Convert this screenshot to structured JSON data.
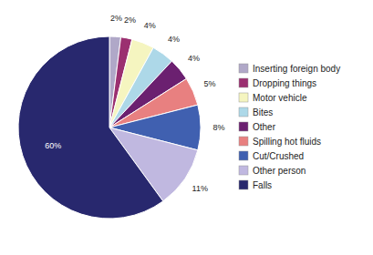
{
  "chart_data": {
    "type": "pie",
    "categories": [
      "Inserting foreign body",
      "Dropping things",
      "Motor vehicle",
      "Bites",
      "Other",
      "Spilling hot fluids",
      "Cut/Crushed",
      "Other person",
      "Falls"
    ],
    "values": [
      2,
      2,
      4,
      4,
      4,
      5,
      8,
      11,
      60
    ],
    "value_labels": [
      "2%",
      "2%",
      "4%",
      "4%",
      "4%",
      "5%",
      "8%",
      "11%",
      "60%"
    ],
    "colors": [
      "#b0a8c8",
      "#9b3070",
      "#f5f5c0",
      "#add8e8",
      "#6b2070",
      "#e88080",
      "#4060b0",
      "#c0b8e0",
      "#28286e"
    ],
    "data_labels": true,
    "legend": "right"
  }
}
